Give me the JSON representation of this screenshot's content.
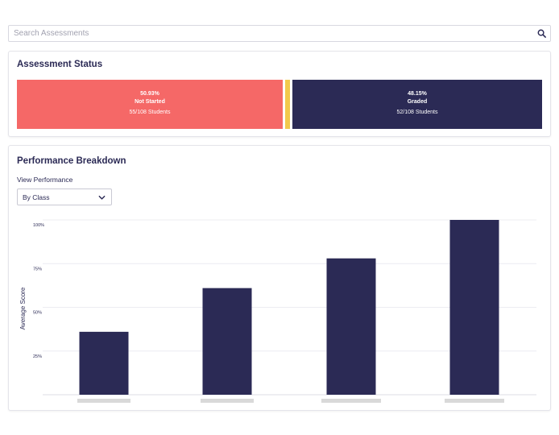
{
  "search": {
    "placeholder": "Search Assessments",
    "value": ""
  },
  "status": {
    "title": "Assessment Status",
    "segments": [
      {
        "key": "not_started",
        "percent": "50.93%",
        "label": "Not Started",
        "count": "55/108 Students",
        "color": "#f56867"
      },
      {
        "key": "in_progress",
        "color": "#f2c94c"
      },
      {
        "key": "graded",
        "percent": "48.15%",
        "label": "Graded",
        "count": "52/108 Students",
        "color": "#2b2a55"
      }
    ]
  },
  "performance": {
    "title": "Performance Breakdown",
    "view_label": "View Performance",
    "view_selected": "By Class"
  },
  "chart_data": {
    "type": "bar",
    "ylabel": "Average Score",
    "yticks": [
      "25%",
      "50%",
      "75%",
      "100%"
    ],
    "ylim": [
      0,
      100
    ],
    "categories": [
      "",
      "",
      "",
      ""
    ],
    "values": [
      36,
      61,
      78,
      100
    ],
    "bar_color": "#2b2a55",
    "grid": true
  }
}
